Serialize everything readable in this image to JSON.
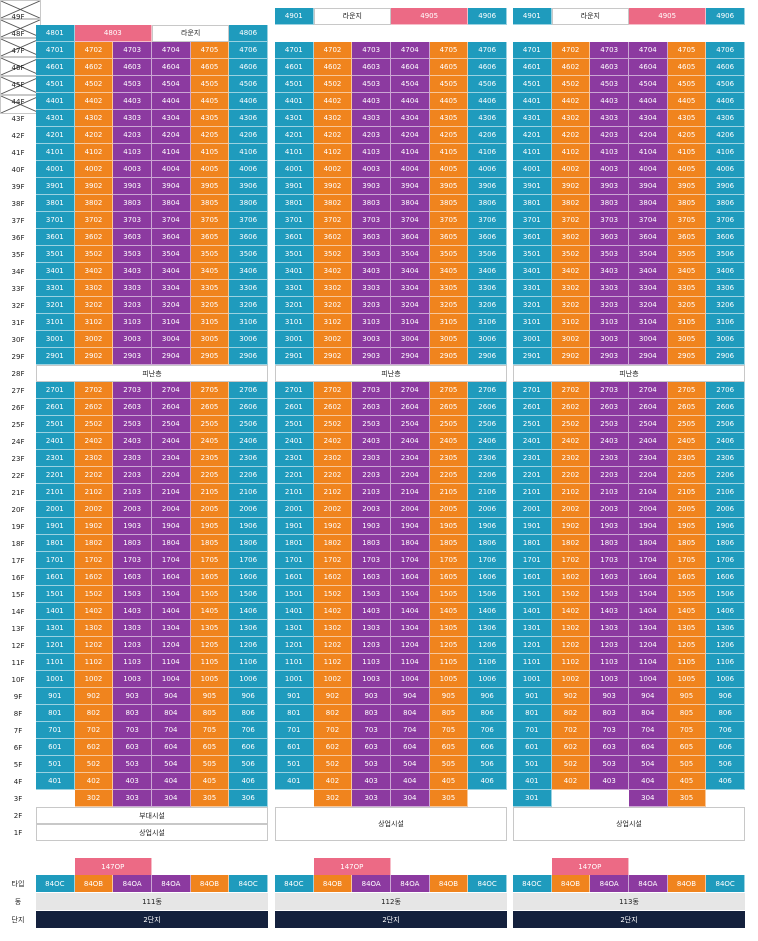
{
  "floor_labels": {
    "above": [
      "49F",
      "48F",
      "47F",
      "46F",
      "45F",
      "44F",
      "43F",
      "42F",
      "41F",
      "40F",
      "39F",
      "38F",
      "37F",
      "36F",
      "35F",
      "34F",
      "33F",
      "32F",
      "31F",
      "30F",
      "29F",
      "28F",
      "27F",
      "26F",
      "25F",
      "24F",
      "23F",
      "22F",
      "21F",
      "20F",
      "19F",
      "18F",
      "17F",
      "16F",
      "15F",
      "14F",
      "13F",
      "12F",
      "11F",
      "10F",
      "9F",
      "8F",
      "7F",
      "6F",
      "5F",
      "4F",
      "3F",
      "2F",
      "1F"
    ]
  },
  "bottom_labels": {
    "type": "타입",
    "dong": "동",
    "danji": "단지"
  },
  "buildings": [
    {
      "id": "111",
      "dong": "111동",
      "danji": "2단지",
      "refuge": "피난층",
      "facility_2f": "부대시설",
      "facility_1f": "상업시설",
      "penthouse_type": "147OP",
      "types": [
        "84OC",
        "84OB",
        "84OA",
        "84OA",
        "84OB",
        "84OC"
      ],
      "top_row": {
        "floor": "48F",
        "cells": [
          "4801",
          "4803",
          "라운지",
          "",
          "",
          "4806"
        ]
      },
      "row3f": [
        "x",
        "302",
        "303",
        "304",
        "305",
        "306"
      ]
    },
    {
      "id": "112",
      "dong": "112동",
      "danji": "2단지",
      "refuge": "피난층",
      "facility_1f": "상업시설",
      "penthouse_type": "147OP",
      "types": [
        "84OC",
        "84OB",
        "84OA",
        "84OA",
        "84OB",
        "84OC"
      ],
      "top_row": {
        "floor": "49F",
        "cells": [
          "4901",
          "라운지",
          "",
          "4905",
          "",
          "4906"
        ]
      },
      "row3f": [
        "x",
        "302",
        "303",
        "304",
        "305",
        "x"
      ]
    },
    {
      "id": "113",
      "dong": "113동",
      "danji": "2단지",
      "refuge": "피난층",
      "facility_1f": "상업시설",
      "penthouse_type": "147OP",
      "types": [
        "84OC",
        "84OB",
        "84OA",
        "84OA",
        "84OB",
        "84OC"
      ],
      "top_row": {
        "floor": "49F",
        "cells": [
          "4901",
          "라운지",
          "",
          "4905",
          "",
          "4906"
        ]
      },
      "row3f": [
        "301",
        "x",
        "x",
        "304",
        "305",
        "x"
      ]
    }
  ],
  "colors": {
    "teal": "#1f9bbd",
    "orange": "#f0841e",
    "purple": "#8c3aa0",
    "pink": "#ec6a85",
    "navy": "#14213d"
  }
}
